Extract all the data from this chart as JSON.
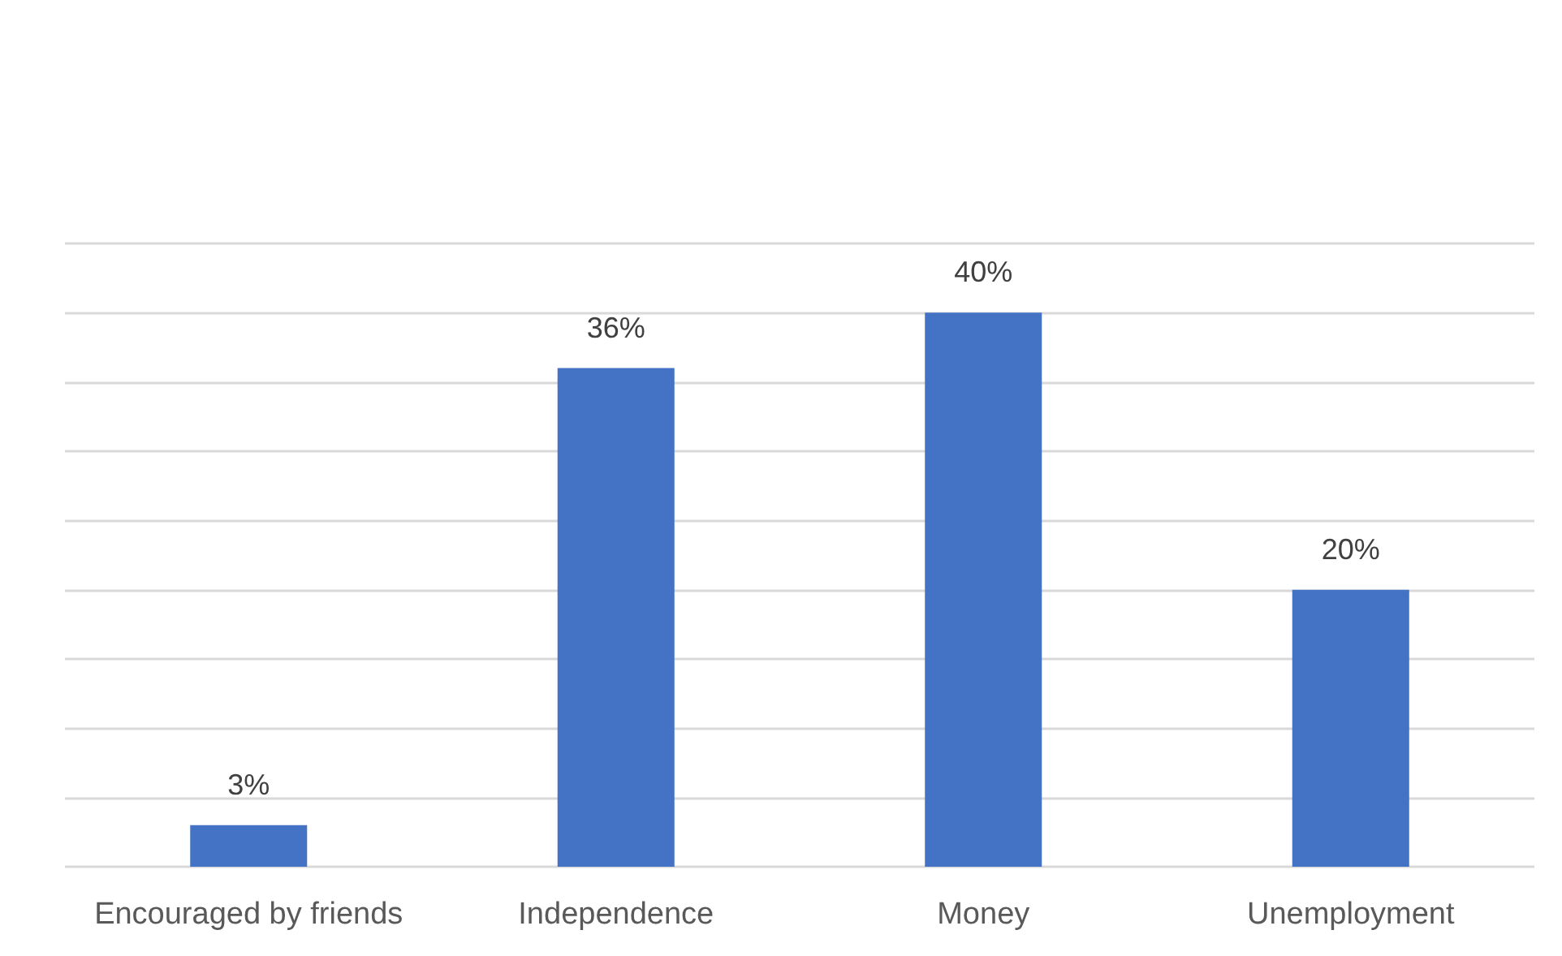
{
  "chart_data": {
    "type": "bar",
    "categories": [
      "Encouraged by friends",
      "Independence",
      "Money",
      "Unemployment"
    ],
    "values": [
      3,
      36,
      40,
      20
    ],
    "color": "#4472c4",
    "value_labels": [
      "3%",
      "36%",
      "40%",
      "20%"
    ],
    "ylim": [
      0,
      45
    ],
    "yticks": [
      {
        "value": 0,
        "label": null
      },
      {
        "value": 5,
        "label": null
      },
      {
        "value": 10,
        "label": null
      },
      {
        "value": 15,
        "label": null
      },
      {
        "value": 20,
        "label": null
      },
      {
        "value": 25,
        "label": null
      },
      {
        "value": 30,
        "label": null
      },
      {
        "value": 35,
        "label": null
      },
      {
        "value": 40,
        "label": null
      },
      {
        "value": 45,
        "label": null
      }
    ],
    "grid": "y",
    "tick_labels": "x"
  }
}
